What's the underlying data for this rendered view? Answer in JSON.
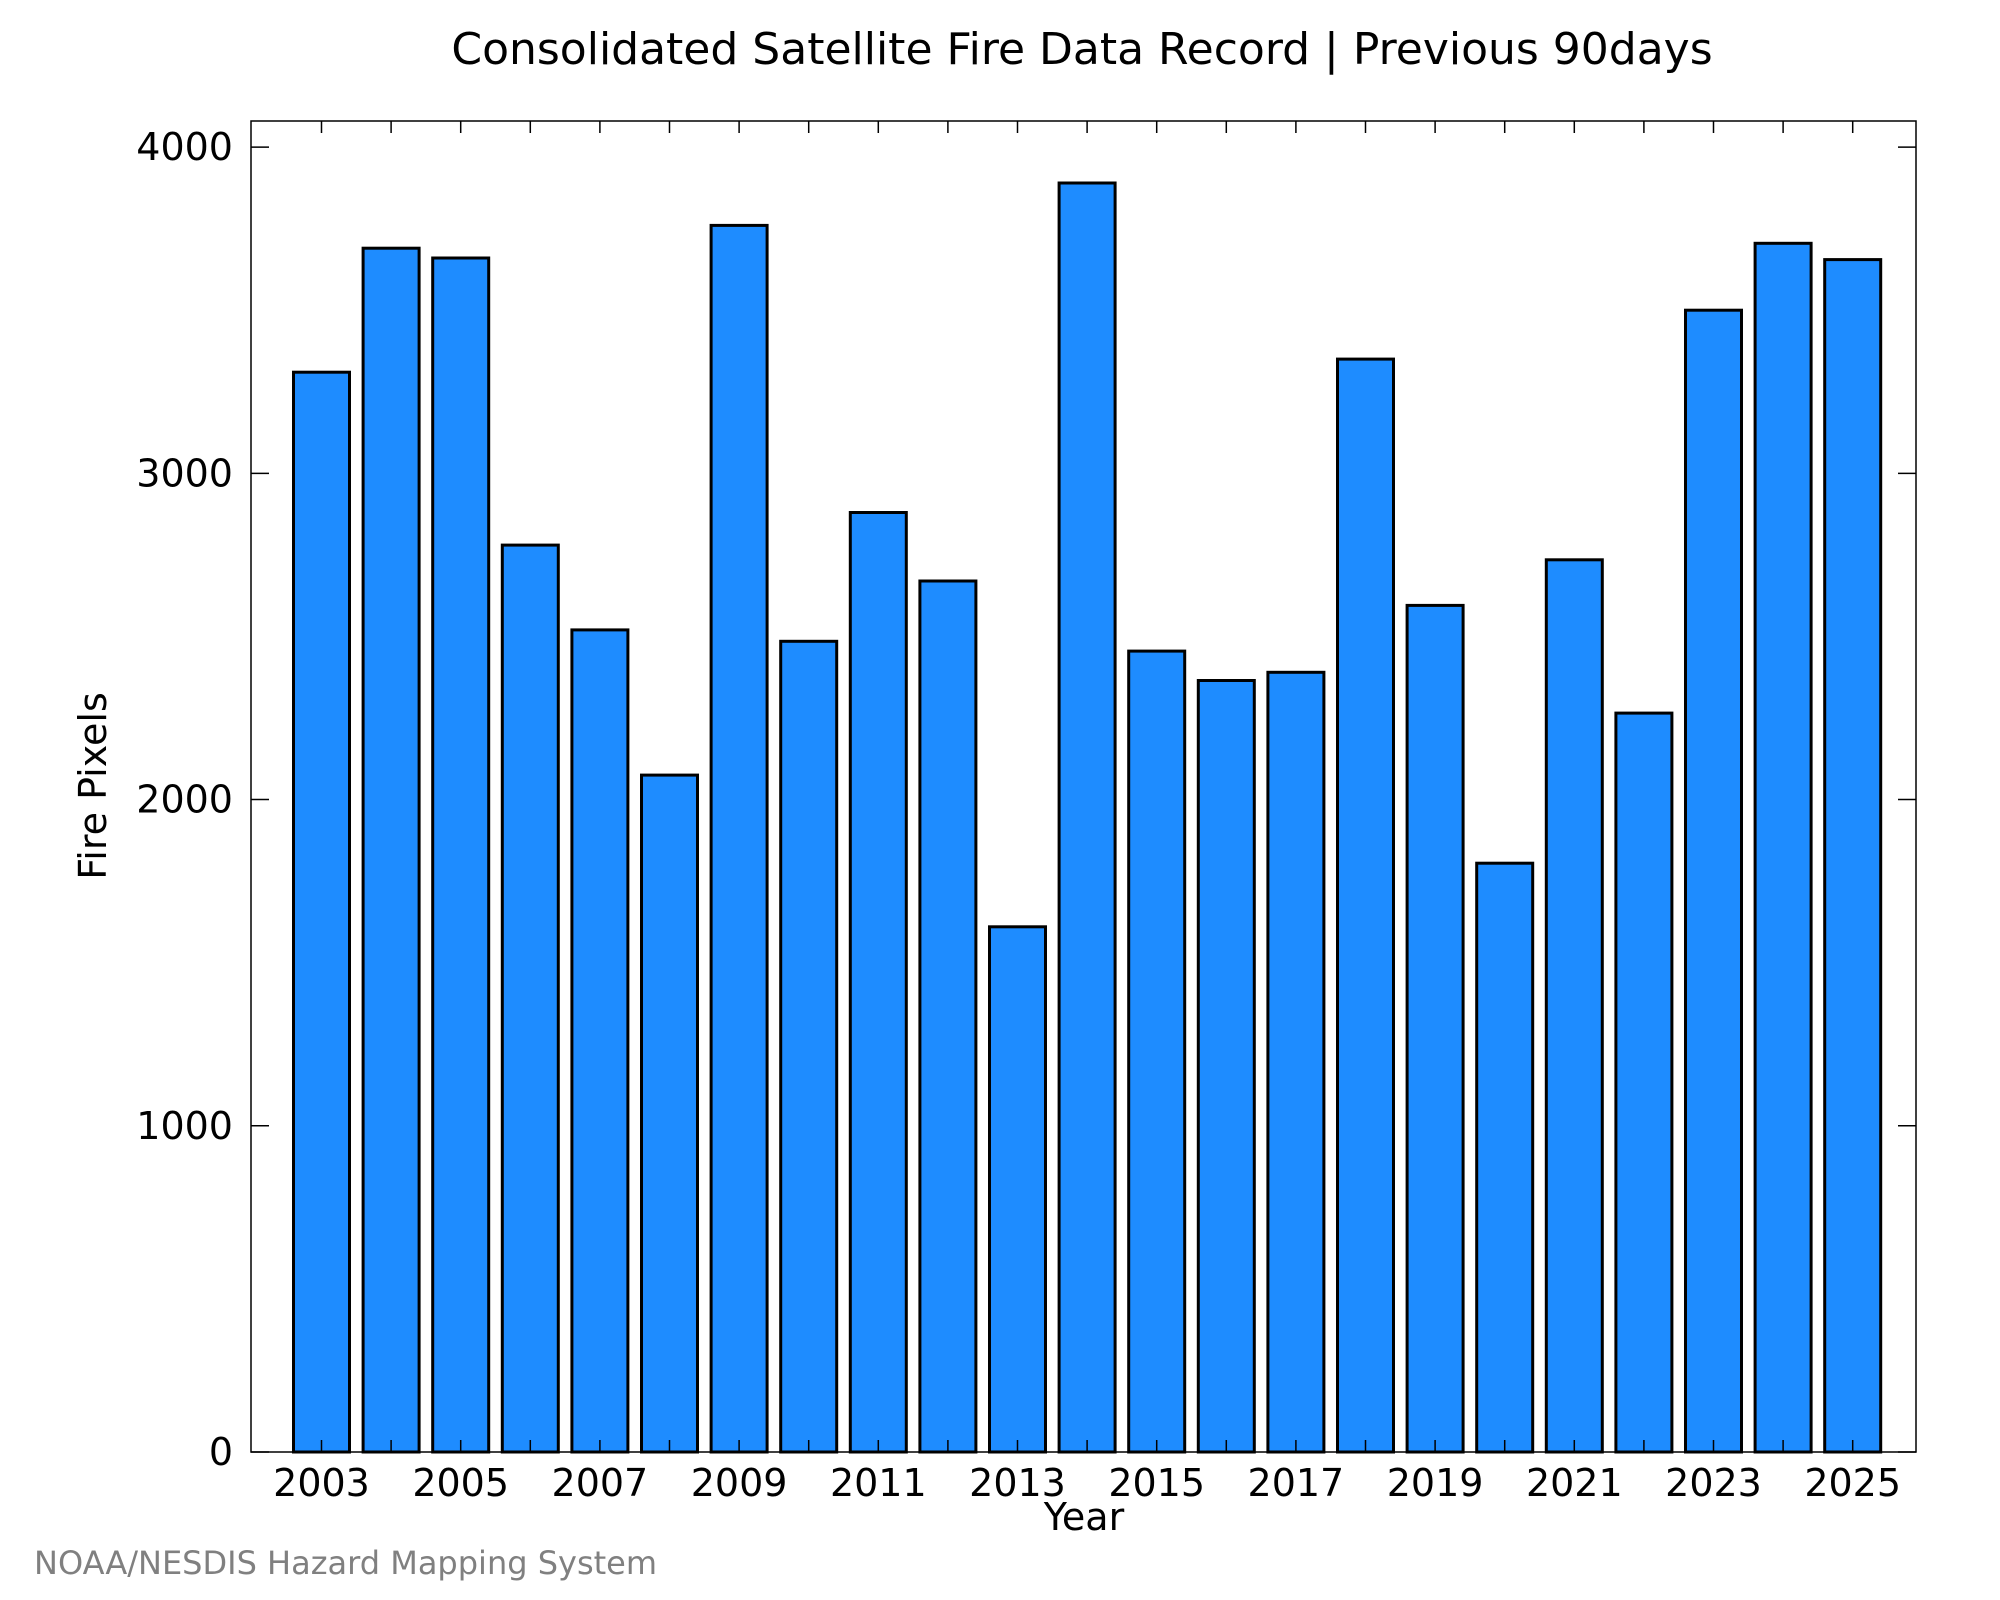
{
  "chart_data": {
    "type": "bar",
    "title": "Consolidated Satellite Fire Data Record | Previous 90days",
    "xlabel": "Year",
    "ylabel": "Fire Pixels",
    "categories": [
      "2003",
      "2004",
      "2005",
      "2006",
      "2007",
      "2008",
      "2009",
      "2010",
      "2011",
      "2012",
      "2013",
      "2014",
      "2015",
      "2016",
      "2017",
      "2018",
      "2019",
      "2020",
      "2021",
      "2022",
      "2023",
      "2024",
      "2025"
    ],
    "values": [
      3310,
      3690,
      3660,
      2780,
      2520,
      2075,
      3760,
      2485,
      2880,
      2670,
      1610,
      3890,
      2455,
      2365,
      2390,
      3350,
      2595,
      1805,
      2735,
      2265,
      3500,
      3705,
      3655
    ],
    "x_tick_labels": [
      "2003",
      "2005",
      "2007",
      "2009",
      "2011",
      "2013",
      "2015",
      "2017",
      "2019",
      "2021",
      "2023",
      "2025"
    ],
    "y_tick_labels": [
      "0",
      "1000",
      "2000",
      "3000",
      "4000"
    ],
    "ylim": [
      0,
      4080
    ],
    "bar_color": "#1e8cff",
    "bar_edge_color": "#000000",
    "grid": false,
    "legend": "none"
  },
  "credit": "NOAA/NESDIS Hazard Mapping System"
}
